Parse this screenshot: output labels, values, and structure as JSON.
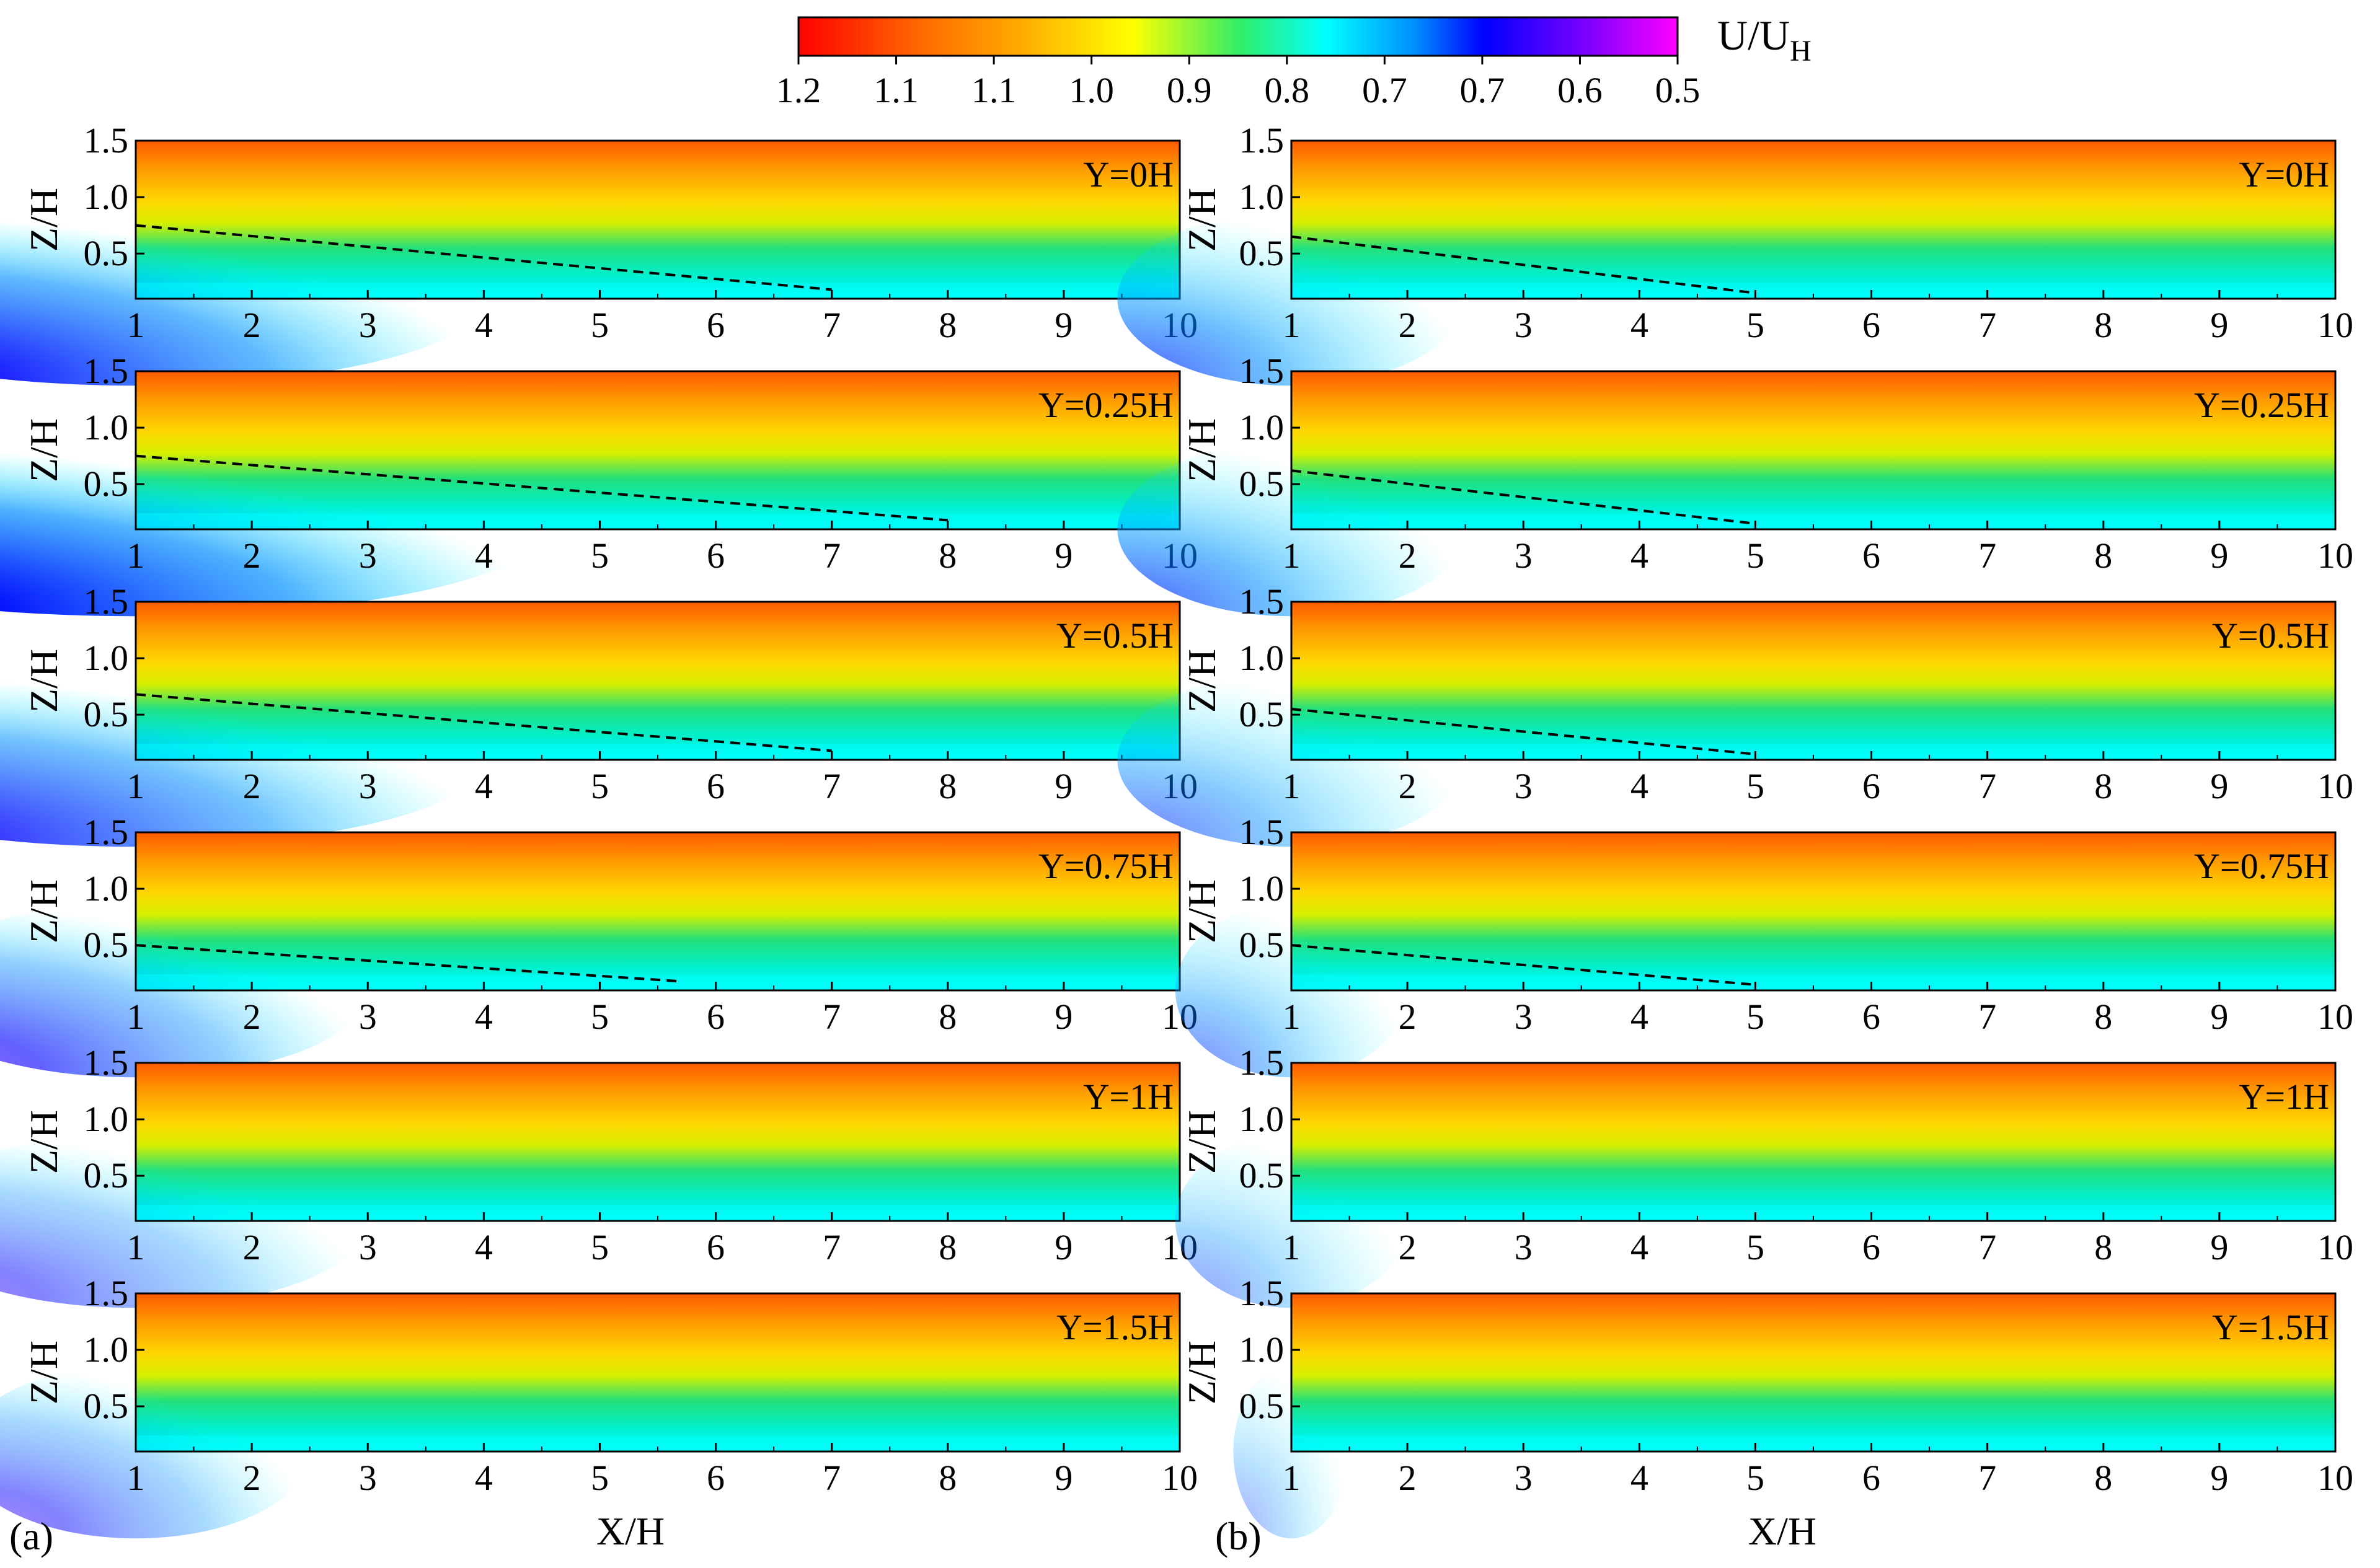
{
  "colorbar": {
    "title_main": "U/U",
    "title_sub": "H",
    "tick_labels": [
      "1.2",
      "1.1",
      "1.1",
      "1.0",
      "0.9",
      "0.8",
      "0.7",
      "0.7",
      "0.6",
      "0.5"
    ],
    "range": [
      1.2,
      0.5
    ],
    "colors": [
      "#ff0000",
      "#ff8000",
      "#ffc000",
      "#ffff00",
      "#00ff80",
      "#00ffff",
      "#0080ff",
      "#0000ff",
      "#8000ff",
      "#ff00ff"
    ]
  },
  "chart_data": [
    {
      "id": "a",
      "figure_label": "(a)",
      "type": "heatmap",
      "xlabel": "X/H",
      "ylabel": "Z/H",
      "xlim": [
        1,
        10
      ],
      "ylim": [
        0.1,
        1.5
      ],
      "x_ticks": [
        "1",
        "2",
        "3",
        "4",
        "5",
        "6",
        "7",
        "8",
        "9",
        "10"
      ],
      "y_ticks": [
        "0.5",
        "1.0",
        "1.5"
      ],
      "panels": [
        {
          "label": "Y=0H",
          "low_value": 0.6,
          "low_extent_x": 4,
          "boundary": {
            "x": [
              1,
              7
            ],
            "z": [
              0.75,
              0.18
            ]
          }
        },
        {
          "label": "Y=0.25H",
          "low_value": 0.55,
          "low_extent_x": 4.5,
          "boundary": {
            "x": [
              1,
              8
            ],
            "z": [
              0.75,
              0.18
            ]
          }
        },
        {
          "label": "Y=0.5H",
          "low_value": 0.65,
          "low_extent_x": 4,
          "boundary": {
            "x": [
              1,
              7
            ],
            "z": [
              0.68,
              0.18
            ]
          }
        },
        {
          "label": "Y=0.75H",
          "low_value": 0.72,
          "low_extent_x": 3,
          "boundary": {
            "x": [
              1,
              5.7
            ],
            "z": [
              0.5,
              0.18
            ]
          }
        },
        {
          "label": "Y=1H",
          "low_value": 0.78,
          "low_extent_x": 3,
          "boundary": null
        },
        {
          "label": "Y=1.5H",
          "low_value": 0.78,
          "low_extent_x": 2.5,
          "boundary": null
        }
      ]
    },
    {
      "id": "b",
      "figure_label": "(b)",
      "type": "heatmap",
      "xlabel": "X/H",
      "ylabel": "Z/H",
      "xlim": [
        1,
        10
      ],
      "ylim": [
        0.1,
        1.5
      ],
      "x_ticks": [
        "1",
        "2",
        "3",
        "4",
        "5",
        "6",
        "7",
        "8",
        "9",
        "10"
      ],
      "y_ticks": [
        "0.5",
        "1.0",
        "1.5"
      ],
      "panels": [
        {
          "label": "Y=0H",
          "low_value": 0.68,
          "low_extent_x": 2.5,
          "boundary": {
            "x": [
              1,
              5
            ],
            "z": [
              0.65,
              0.15
            ]
          }
        },
        {
          "label": "Y=0.25H",
          "low_value": 0.68,
          "low_extent_x": 2.5,
          "boundary": {
            "x": [
              1,
              5
            ],
            "z": [
              0.62,
              0.15
            ]
          }
        },
        {
          "label": "Y=0.5H",
          "low_value": 0.74,
          "low_extent_x": 2.5,
          "boundary": {
            "x": [
              1,
              5
            ],
            "z": [
              0.55,
              0.15
            ]
          }
        },
        {
          "label": "Y=0.75H",
          "low_value": 0.76,
          "low_extent_x": 2,
          "boundary": {
            "x": [
              1,
              5
            ],
            "z": [
              0.5,
              0.15
            ]
          }
        },
        {
          "label": "Y=1H",
          "low_value": 0.8,
          "low_extent_x": 2,
          "boundary": null
        },
        {
          "label": "Y=1.5H",
          "low_value": 0.86,
          "low_extent_x": 1.5,
          "boundary": null
        }
      ]
    }
  ]
}
